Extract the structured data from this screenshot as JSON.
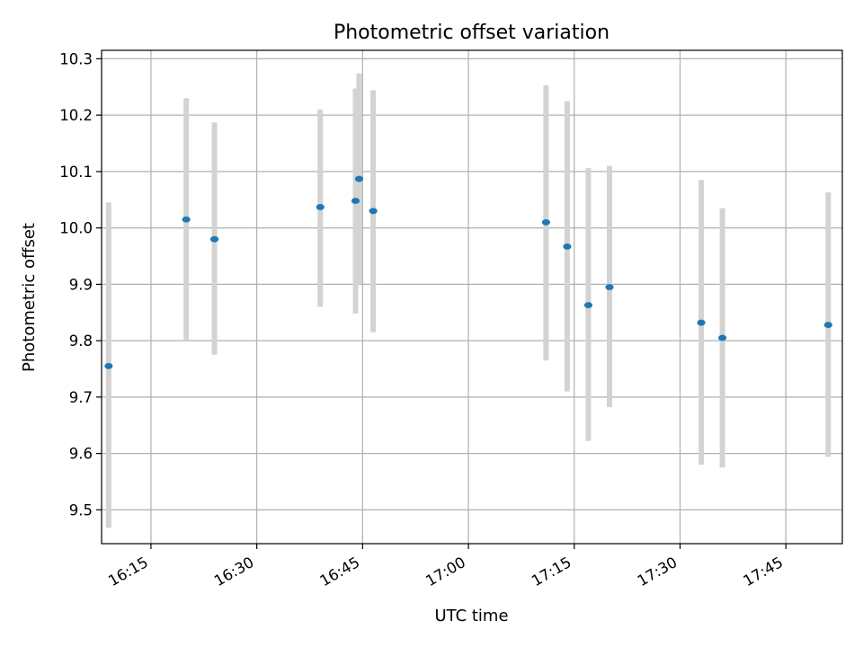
{
  "chart_data": {
    "type": "scatter",
    "title": "Photometric offset variation",
    "xlabel": "UTC time",
    "ylabel": "Photometric offset",
    "x_axis_type": "time",
    "xlim": [
      "16:08",
      "17:53"
    ],
    "ylim": [
      9.44,
      10.315
    ],
    "grid": true,
    "legend": "none",
    "colors": {
      "point": "#1f77b4",
      "errorbar": "#d3d3d3",
      "grid": "#b0b0b0"
    },
    "x_ticks": [
      "16:15",
      "16:30",
      "16:45",
      "17:00",
      "17:15",
      "17:30",
      "17:45"
    ],
    "y_ticks": [
      9.5,
      9.6,
      9.7,
      9.8,
      9.9,
      10.0,
      10.1,
      10.2,
      10.3
    ],
    "y_tick_labels": [
      "9.5",
      "9.6",
      "9.7",
      "9.8",
      "9.9",
      "10.0",
      "10.1",
      "10.2",
      "10.3"
    ],
    "points": [
      {
        "x": "16:09",
        "y": 9.755,
        "err_low": 9.468,
        "err_high": 10.045
      },
      {
        "x": "16:20",
        "y": 10.015,
        "err_low": 9.8,
        "err_high": 10.23
      },
      {
        "x": "16:24",
        "y": 9.98,
        "err_low": 9.775,
        "err_high": 10.187
      },
      {
        "x": "16:39",
        "y": 10.037,
        "err_low": 9.86,
        "err_high": 10.21
      },
      {
        "x": "16:44",
        "y": 10.048,
        "err_low": 9.848,
        "err_high": 10.247
      },
      {
        "x": "16:44:30",
        "y": 10.087,
        "err_low": 9.9,
        "err_high": 10.274
      },
      {
        "x": "16:46:30",
        "y": 10.03,
        "err_low": 9.815,
        "err_high": 10.244
      },
      {
        "x": "17:11",
        "y": 10.01,
        "err_low": 9.765,
        "err_high": 10.253
      },
      {
        "x": "17:14",
        "y": 9.967,
        "err_low": 9.71,
        "err_high": 10.225
      },
      {
        "x": "17:17",
        "y": 9.863,
        "err_low": 9.622,
        "err_high": 10.106
      },
      {
        "x": "17:20",
        "y": 9.895,
        "err_low": 9.682,
        "err_high": 10.11
      },
      {
        "x": "17:33",
        "y": 9.832,
        "err_low": 9.58,
        "err_high": 10.085
      },
      {
        "x": "17:36",
        "y": 9.805,
        "err_low": 9.575,
        "err_high": 10.035
      },
      {
        "x": "17:51",
        "y": 9.828,
        "err_low": 9.594,
        "err_high": 10.063
      }
    ]
  }
}
